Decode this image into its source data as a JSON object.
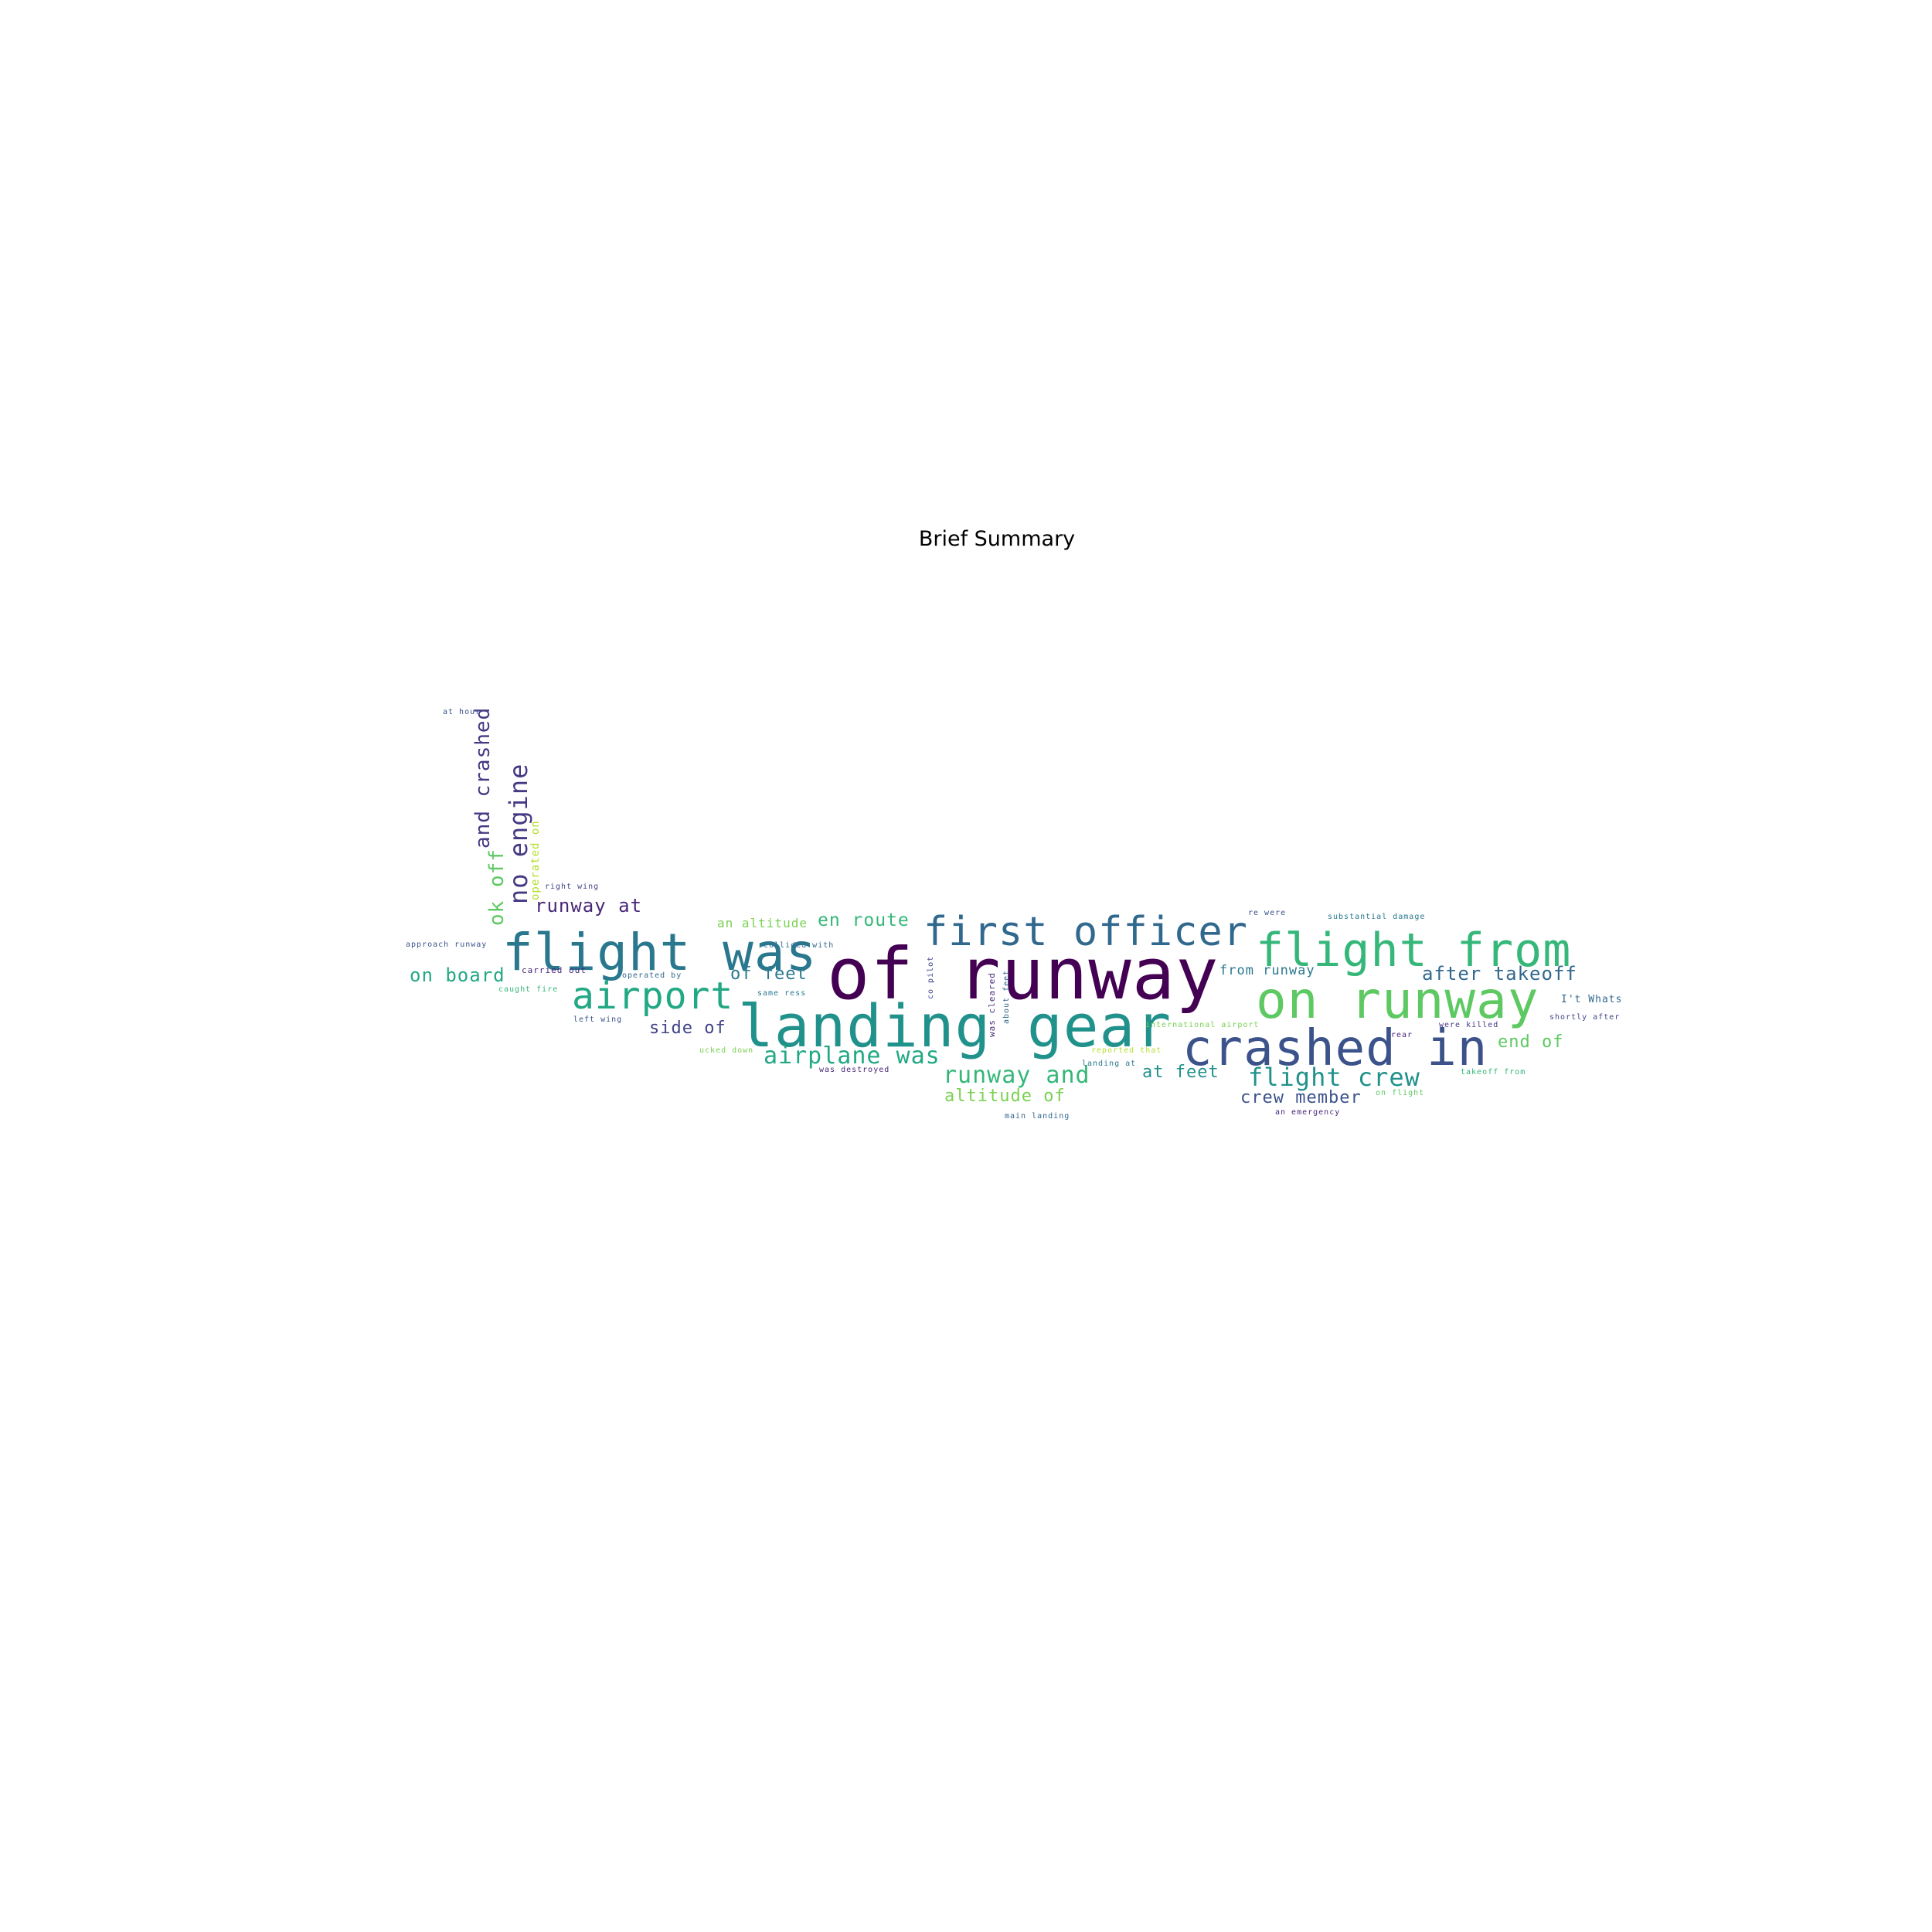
{
  "title": "Brief Summary",
  "chart_data": {
    "type": "wordcloud",
    "title": "Brief Summary",
    "words": [
      {
        "text": "of runway",
        "color": "#440154"
      },
      {
        "text": "landing gear",
        "color": "#21918c"
      },
      {
        "text": "flight was",
        "color": "#2a788e"
      },
      {
        "text": "on runway",
        "color": "#5ec962"
      },
      {
        "text": "crashed in",
        "color": "#3b528b"
      },
      {
        "text": "flight from",
        "color": "#35b779"
      },
      {
        "text": "first officer",
        "color": "#31688e"
      },
      {
        "text": "airport",
        "color": "#22a884"
      },
      {
        "text": "airplane was",
        "color": "#22a884"
      },
      {
        "text": "flight crew",
        "color": "#21918c"
      },
      {
        "text": "runway and",
        "color": "#35b779"
      },
      {
        "text": "after takeoff",
        "color": "#31688e"
      },
      {
        "text": "no engine",
        "color": "#443983"
      },
      {
        "text": "and crashed",
        "color": "#443983"
      },
      {
        "text": "ok off",
        "color": "#5ec962"
      },
      {
        "text": "runway at",
        "color": "#482878"
      },
      {
        "text": "en route",
        "color": "#35b779"
      },
      {
        "text": "on board",
        "color": "#22a884"
      },
      {
        "text": "of feet",
        "color": "#2a788e"
      },
      {
        "text": "side of",
        "color": "#414487"
      },
      {
        "text": "altitude of",
        "color": "#7ad151"
      },
      {
        "text": "at feet",
        "color": "#21918c"
      },
      {
        "text": "crew member",
        "color": "#3b528b"
      },
      {
        "text": "end of",
        "color": "#5ec962"
      },
      {
        "text": "an altitude",
        "color": "#7ad151"
      },
      {
        "text": "from runway",
        "color": "#2a788e"
      },
      {
        "text": "operated on",
        "color": "#b5de2b"
      },
      {
        "text": "at hour",
        "color": "#3b528b"
      },
      {
        "text": "right wing",
        "color": "#414487"
      },
      {
        "text": "approach runway",
        "color": "#3b528b"
      },
      {
        "text": "collided with",
        "color": "#31688e"
      },
      {
        "text": "carried out",
        "color": "#482878"
      },
      {
        "text": "operated by",
        "color": "#31688e"
      },
      {
        "text": "caught fire",
        "color": "#35b779"
      },
      {
        "text": "same ress",
        "color": "#2a788e"
      },
      {
        "text": "left wing",
        "color": "#3b528b"
      },
      {
        "text": "ucked down",
        "color": "#7ad151"
      },
      {
        "text": "was destroyed",
        "color": "#482878"
      },
      {
        "text": "co pilot",
        "color": "#414487"
      },
      {
        "text": "was cleared",
        "color": "#482878"
      },
      {
        "text": "about feet",
        "color": "#31688e"
      },
      {
        "text": "international airport",
        "color": "#7ad151"
      },
      {
        "text": "reported that",
        "color": "#b5de2b"
      },
      {
        "text": "landing at",
        "color": "#2a788e"
      },
      {
        "text": "main landing",
        "color": "#31688e"
      },
      {
        "text": "re were",
        "color": "#3b528b"
      },
      {
        "text": "substantial damage",
        "color": "#2a788e"
      },
      {
        "text": "were killed",
        "color": "#443983"
      },
      {
        "text": "shortly after",
        "color": "#414487"
      },
      {
        "text": "takeoff from",
        "color": "#35b779"
      },
      {
        "text": "on flight",
        "color": "#5ec962"
      },
      {
        "text": "an emergency",
        "color": "#482878"
      },
      {
        "text": "rear",
        "color": "#482878"
      },
      {
        "text": "I't Whats",
        "color": "#31688e"
      }
    ]
  }
}
